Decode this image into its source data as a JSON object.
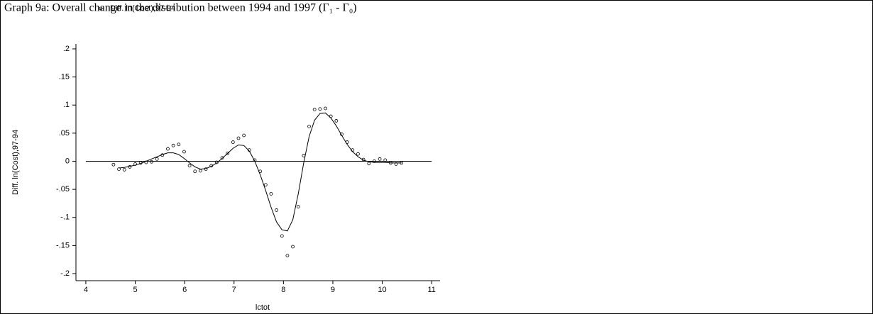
{
  "chart_data": {
    "type": "scatter",
    "title": "Graph 9a: Overall change in the distribution between 1994 and 1997 (Γ₁ - Γ₀)",
    "x_label": "lctot",
    "y_label": "Diff. ln(Cost),97-94",
    "x": [
      4.56,
      4.67,
      4.78,
      4.89,
      5.0,
      5.11,
      5.22,
      5.33,
      5.44,
      5.55,
      5.66,
      5.77,
      5.88,
      5.99,
      6.1,
      6.21,
      6.32,
      6.43,
      6.54,
      6.65,
      6.76,
      6.87,
      6.98,
      7.09,
      7.2,
      7.31,
      7.42,
      7.53,
      7.64,
      7.75,
      7.86,
      7.97,
      8.08,
      8.19,
      8.3,
      8.41,
      8.52,
      8.63,
      8.74,
      8.85,
      8.96,
      9.07,
      9.18,
      9.29,
      9.4,
      9.51,
      9.62,
      9.73,
      9.84,
      9.95,
      10.06,
      10.17,
      10.28,
      10.39
    ],
    "series": [
      {
        "name": "Diff. ln(Cost),97-94",
        "color": "#000000",
        "values": [
          -0.006,
          -0.014,
          -0.015,
          -0.01,
          -0.005,
          -0.003,
          -0.002,
          -0.001,
          0.004,
          0.011,
          0.022,
          0.028,
          0.03,
          0.017,
          -0.008,
          -0.018,
          -0.017,
          -0.014,
          -0.008,
          -0.002,
          0.006,
          0.014,
          0.034,
          0.041,
          0.046,
          0.02,
          0.002,
          -0.018,
          -0.042,
          -0.058,
          -0.087,
          -0.133,
          -0.168,
          -0.152,
          -0.081,
          0.01,
          0.062,
          0.092,
          0.093,
          0.094,
          0.08,
          0.072,
          0.048,
          0.034,
          0.02,
          0.013,
          0.003,
          -0.004,
          0.0,
          0.004,
          0.002,
          -0.003,
          -0.005,
          -0.003
        ]
      },
      {
        "type": "line",
        "color": "#000000",
        "values": [
          null,
          -0.012,
          -0.011,
          -0.009,
          -0.007,
          -0.004,
          0.0,
          0.004,
          0.008,
          0.012,
          0.015,
          0.015,
          0.012,
          0.005,
          -0.003,
          -0.01,
          -0.014,
          -0.013,
          -0.009,
          -0.003,
          0.005,
          0.014,
          0.023,
          0.029,
          0.028,
          0.018,
          0.0,
          -0.024,
          -0.052,
          -0.082,
          -0.108,
          -0.122,
          -0.124,
          -0.104,
          -0.058,
          -0.003,
          0.044,
          0.073,
          0.085,
          0.086,
          0.077,
          0.063,
          0.046,
          0.03,
          0.017,
          0.008,
          0.002,
          -0.001,
          -0.002,
          -0.002,
          -0.002,
          -0.003,
          -0.003,
          -0.003
        ]
      }
    ],
    "hline": 0,
    "xlim": [
      3.8,
      11.17
    ],
    "ylim": [
      -0.2126,
      0.2088
    ],
    "xticks": [
      4,
      5,
      6,
      7,
      8,
      9,
      10,
      11
    ],
    "yticks": [
      {
        "value": 0.2,
        "label": ".2"
      },
      {
        "value": 0.15,
        "label": ".15"
      },
      {
        "value": 0.1,
        "label": ".1"
      },
      {
        "value": 0.05,
        "label": ".05"
      },
      0,
      {
        "value": -0.05,
        "label": "-.05"
      },
      {
        "value": -0.1,
        "label": "-.1"
      },
      {
        "value": -0.15,
        "label": "-.15"
      },
      {
        "value": -0.2,
        "label": "-.2"
      }
    ]
  }
}
